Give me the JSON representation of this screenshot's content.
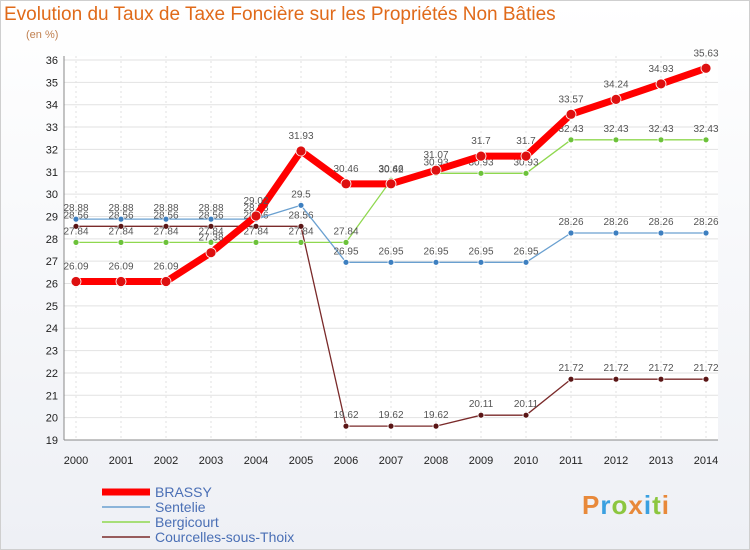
{
  "title": "Evolution du Taux de Taxe Foncière sur les Propriétés Non Bâties",
  "unit": "(en %)",
  "logo": [
    "P",
    "r",
    "o",
    "x",
    "i",
    "t",
    "i"
  ],
  "colors": {
    "title": "#e06a1a",
    "grid": "#e2e2e2",
    "axis": "#888888"
  },
  "chart_data": {
    "type": "line",
    "title": "Evolution du Taux de Taxe Foncière sur les Propriétés Non Bâties",
    "ylabel": "(en %)",
    "xlabel": "",
    "ylim": [
      19,
      36
    ],
    "yticks": [
      19,
      20,
      21,
      22,
      23,
      24,
      25,
      26,
      27,
      28,
      29,
      30,
      31,
      32,
      33,
      34,
      35,
      36
    ],
    "x": [
      "2000",
      "2001",
      "2002",
      "2003",
      "2004",
      "2005",
      "2006",
      "2007",
      "2008",
      "2009",
      "2010",
      "2011",
      "2012",
      "2013",
      "2014"
    ],
    "series": [
      {
        "name": "Courcelles-sous-Thoix",
        "color": "#7a2a2a",
        "dot": "#5a1515",
        "width": 1.3,
        "dotR": 3,
        "values": [
          28.56,
          28.56,
          28.56,
          28.56,
          28.56,
          28.56,
          19.62,
          19.62,
          19.62,
          20.11,
          20.11,
          21.72,
          21.72,
          21.72,
          21.72
        ],
        "labels": [
          "28.56",
          "28.56",
          "28.56",
          "28.56",
          "28.56",
          "28.56",
          "19.62",
          "19.62",
          "19.62",
          "20.11",
          "20.11",
          "21.72",
          "21.72",
          "21.72",
          "21.72"
        ],
        "labelOffset": -8
      },
      {
        "name": "Bergicourt",
        "color": "#8fd84f",
        "dot": "#6cc23a",
        "width": 1.3,
        "dotR": 3,
        "values": [
          27.84,
          27.84,
          27.84,
          27.84,
          27.84,
          27.84,
          27.84,
          30.62,
          30.93,
          30.93,
          30.93,
          32.43,
          32.43,
          32.43,
          32.43
        ],
        "labels": [
          "27.84",
          "27.84",
          "27.84",
          "27.84",
          "27.84",
          "27.84",
          "27.84",
          "30.62",
          "30.93",
          "30.93",
          "30.93",
          "32.43",
          "32.43",
          "32.43",
          "32.43"
        ],
        "labelOffset": -8
      },
      {
        "name": "Sentelie",
        "color": "#6aa0d0",
        "dot": "#3d7fc0",
        "width": 1.3,
        "dotR": 3,
        "values": [
          28.88,
          28.88,
          28.88,
          28.88,
          28.88,
          29.5,
          26.95,
          26.95,
          26.95,
          26.95,
          26.95,
          28.26,
          28.26,
          28.26,
          28.26
        ],
        "labels": [
          "28.88",
          "28.88",
          "28.88",
          "28.88",
          "28.88",
          "29.5",
          "26.95",
          "26.95",
          "26.95",
          "26.95",
          "26.95",
          "28.26",
          "28.26",
          "28.26",
          "28.26"
        ],
        "labelOffset": -8
      },
      {
        "name": "BRASSY",
        "color": "#ff0000",
        "dot": "#dd1010",
        "width": 7,
        "dotR": 5,
        "values": [
          26.09,
          26.09,
          26.09,
          27.38,
          29.02,
          31.93,
          30.46,
          30.46,
          31.07,
          31.7,
          31.7,
          33.57,
          34.24,
          34.93,
          35.63
        ],
        "labels": [
          "26.09",
          "26.09",
          "26.09",
          "27.38",
          "29.02",
          "31.93",
          "30.46",
          "30.46",
          "31.07",
          "31.7",
          "31.7",
          "33.57",
          "34.24",
          "34.93",
          "35.63"
        ],
        "labelOffset": -12
      }
    ],
    "legend": [
      {
        "name": "BRASSY",
        "color": "#ff0000",
        "width": 7
      },
      {
        "name": "Sentelie",
        "color": "#6aa0d0",
        "width": 1.5
      },
      {
        "name": "Bergicourt",
        "color": "#8fd84f",
        "width": 1.5
      },
      {
        "name": "Courcelles-sous-Thoix",
        "color": "#7a2a2a",
        "width": 1.5
      }
    ]
  }
}
